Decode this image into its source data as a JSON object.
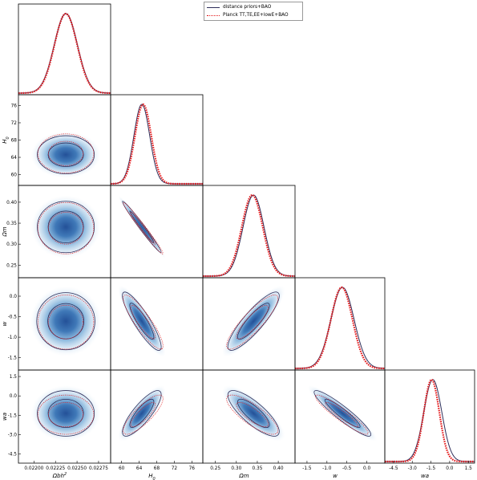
{
  "chart_data": {
    "type": "triangle-corner-plot",
    "parameters": [
      {
        "key": "omegab",
        "label": "Ωbh²",
        "ticks": [
          0.022,
          0.02225,
          0.0225,
          0.02275
        ],
        "tick_labels": [
          "0.02200",
          "0.02225",
          "0.02250",
          "0.02275"
        ],
        "range": [
          0.02182,
          0.02289
        ]
      },
      {
        "key": "H0",
        "label": "H0",
        "ticks": [
          60,
          64,
          68,
          72,
          76
        ],
        "tick_labels": [
          "60",
          "64",
          "68",
          "72",
          "76"
        ],
        "range": [
          57.5,
          78.5
        ]
      },
      {
        "key": "omegam",
        "label": "Ωm",
        "ticks": [
          0.25,
          0.3,
          0.35,
          0.4
        ],
        "tick_labels": [
          "0.25",
          "0.30",
          "0.35",
          "0.40"
        ],
        "range": [
          0.22,
          0.44
        ]
      },
      {
        "key": "w",
        "label": "w",
        "ticks": [
          -1.5,
          -1.0,
          -0.5,
          0.0
        ],
        "tick_labels": [
          "-1.5",
          "-1.0",
          "-0.5",
          "0.0"
        ],
        "range": [
          -1.8,
          0.45
        ]
      },
      {
        "key": "wa",
        "label": "wa",
        "ticks": [
          -4.5,
          -3.0,
          -1.5,
          0.0,
          1.5
        ],
        "tick_labels": [
          "-4.5",
          "-3.0",
          "-1.5",
          "0.0",
          "1.5"
        ],
        "range": [
          -5.2,
          2.0
        ]
      }
    ],
    "series": [
      {
        "name": "distance priors+BAO",
        "color": "#2e2e5a",
        "style": "solid",
        "means": {
          "omegab": 0.02237,
          "H0": 64.6,
          "omegam": 0.341,
          "w": -0.61,
          "wa": -1.35
        },
        "sigmas": {
          "omegab": 0.000135,
          "H0": 1.8,
          "omegam": 0.025,
          "w": 0.29,
          "wa": 0.72
        }
      },
      {
        "name": "Planck TT,TE,EE+lowE+BAO",
        "color": "#e41a1c",
        "style": "dotted",
        "means": {
          "omegab": 0.02237,
          "H0": 64.9,
          "omegam": 0.338,
          "w": -0.63,
          "wa": -1.45
        },
        "sigmas": {
          "omegab": 0.000132,
          "H0": 1.85,
          "omegam": 0.025,
          "w": 0.27,
          "wa": 0.62
        }
      }
    ],
    "correlations": [
      {
        "pair": [
          "H0",
          "omegab"
        ],
        "rho": 0.0
      },
      {
        "pair": [
          "omegam",
          "omegab"
        ],
        "rho": 0.0
      },
      {
        "pair": [
          "omegam",
          "H0"
        ],
        "rho": -0.985
      },
      {
        "pair": [
          "w",
          "omegab"
        ],
        "rho": 0.0
      },
      {
        "pair": [
          "w",
          "H0"
        ],
        "rho": -0.88
      },
      {
        "pair": [
          "w",
          "omegam"
        ],
        "rho": 0.87
      },
      {
        "pair": [
          "wa",
          "omegab"
        ],
        "rho": 0.0
      },
      {
        "pair": [
          "wa",
          "H0"
        ],
        "rho": 0.82
      },
      {
        "pair": [
          "wa",
          "omegam"
        ],
        "rho": -0.8
      },
      {
        "pair": [
          "wa",
          "w"
        ],
        "rho": -0.93
      }
    ],
    "contour_levels": [
      "68%",
      "95%"
    ],
    "fill_color": "#1f5fa8",
    "legend_position": "top-center",
    "grid": false
  }
}
